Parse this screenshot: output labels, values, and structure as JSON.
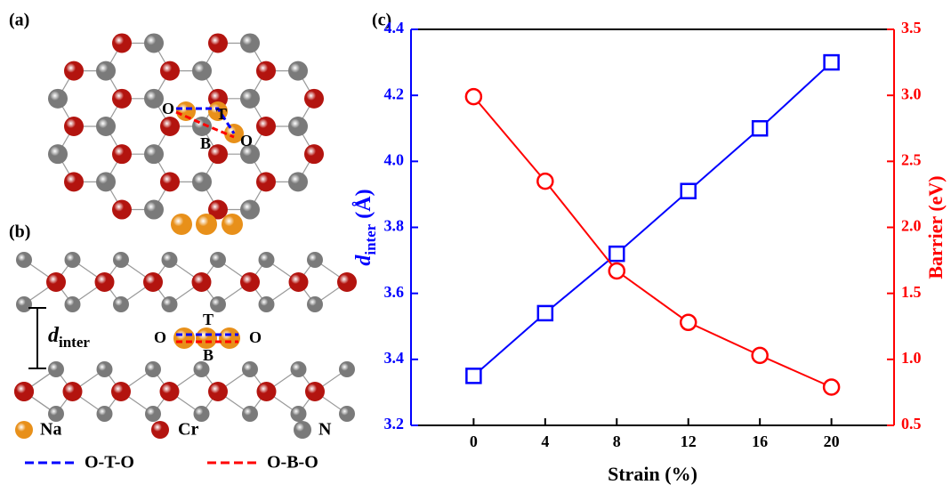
{
  "panels": {
    "a": {
      "label": "(a)",
      "sites": [
        "O",
        "T",
        "B",
        "O"
      ]
    },
    "b": {
      "label": "(b)",
      "distance": {
        "symbol": "d",
        "subscript": "inter"
      },
      "sites": [
        "O",
        "T",
        "B",
        "O"
      ]
    }
  },
  "legend": {
    "atoms": [
      {
        "label": "Na",
        "color": "#e8901a"
      },
      {
        "label": "Cr",
        "color": "#b3140f"
      },
      {
        "label": "N",
        "color": "#7a7a7a"
      }
    ],
    "paths": [
      {
        "label": "O-T-O",
        "color": "#0000ff"
      },
      {
        "label": "O-B-O",
        "color": "#ff0000"
      }
    ]
  },
  "chart_data": {
    "type": "line",
    "panel_label": "(c)",
    "xlabel": "Strain (%)",
    "ylabel": {
      "symbol": "d",
      "subscript": "inter",
      "unit": "(Å)"
    },
    "y2label": "Barrier (eV)",
    "x": [
      0,
      4,
      8,
      12,
      16,
      20
    ],
    "xlim": [
      -3.5,
      23.5
    ],
    "xticks": [
      0,
      4,
      8,
      12,
      16,
      20
    ],
    "ylim": [
      3.2,
      4.4
    ],
    "yticks": [
      3.2,
      3.4,
      3.6,
      3.8,
      {
        "value": 4,
        "label": "4.0"
      },
      4.2,
      4.4
    ],
    "y2lim": [
      0.5,
      3.5
    ],
    "y2ticks": [
      0.5,
      {
        "value": 1,
        "label": "1.0"
      },
      1.5,
      {
        "value": 2,
        "label": "2.0"
      },
      2.5,
      {
        "value": 3,
        "label": "3.0"
      },
      3.5
    ],
    "series": [
      {
        "color": "#0000ff",
        "marker": "square",
        "values": [
          3.35,
          3.54,
          3.72,
          3.91,
          4.1,
          4.3
        ]
      },
      {
        "color": "#ff0000",
        "marker": "circle",
        "axis": "y2",
        "values": [
          2.99,
          2.35,
          1.67,
          1.28,
          1.03,
          0.79
        ]
      }
    ]
  }
}
